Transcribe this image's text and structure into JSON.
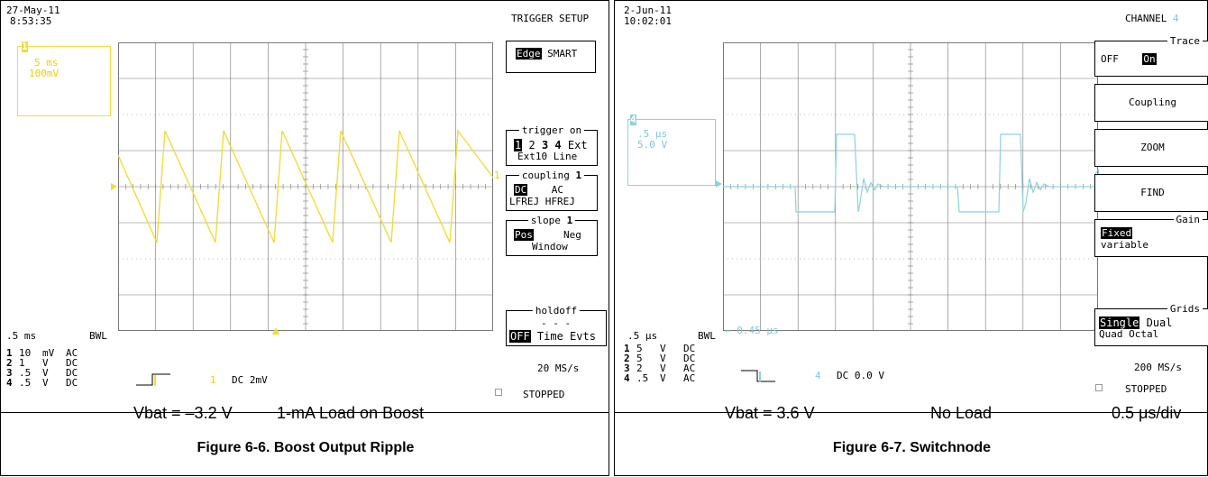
{
  "left": {
    "date": "27-May-11",
    "time": "8:53:35",
    "header": "TRIGGER SETUP",
    "zoom_box": {
      "channel": "1",
      "time": "5 ms",
      "volts": "100mV"
    },
    "menu": {
      "edge": "Edge",
      "smart": "SMART",
      "trigger_on": {
        "title": "trigger on",
        "options": [
          "1",
          "2",
          "3",
          "4",
          "Ext"
        ],
        "line2": "Ext10 Line"
      },
      "coupling": {
        "title": "coupling",
        "channel": "1",
        "dc": "DC",
        "ac": "AC",
        "line2": "LFREJ HFREJ"
      },
      "slope": {
        "title": "slope",
        "channel": "1",
        "pos": "Pos",
        "neg": "Neg",
        "window": "Window"
      },
      "holdoff": {
        "title": "holdoff",
        "dashes": "- - -",
        "off": "OFF",
        "time": "Time Evts"
      }
    },
    "timebase": ".5 ms",
    "bwl": "BWL",
    "channels": [
      {
        "n": "1",
        "v": "10",
        "u": "mV",
        "c": "AC"
      },
      {
        "n": "2",
        "v": "1",
        "u": "V",
        "c": "DC"
      },
      {
        "n": "3",
        "v": ".5",
        "u": "V",
        "c": "DC"
      },
      {
        "n": "4",
        "v": ".5",
        "u": "V",
        "c": "DC"
      }
    ],
    "trig_channel": "1",
    "trig_level": "DC 2mV",
    "sample_rate": "20 MS/s",
    "status": "STOPPED",
    "note_vbat": "Vbat = –3.2 V",
    "note_load": "1-mA Load on Boost",
    "caption": "Figure 6-6. Boost Output Ripple",
    "colors": {
      "trace": "#f0dc3c",
      "grid": "#777777"
    }
  },
  "right": {
    "date": "2-Jun-11",
    "time": "10:02:01",
    "header": "CHANNEL",
    "header_channel": "4",
    "zoom_box": {
      "channel": "4",
      "time": ".5 μs",
      "volts": "5.0 V"
    },
    "menu": {
      "trace": {
        "title": "Trace",
        "off": "OFF",
        "on": "On"
      },
      "coupling": "Coupling",
      "zoom": "ZOOM",
      "find": "FIND",
      "gain": {
        "title": "Gain",
        "fixed": "Fixed",
        "variable": "variable"
      },
      "grids": {
        "title": "Grids",
        "single": "Single",
        "dual": "Dual",
        "line2": "Quad Octal"
      }
    },
    "timebase": ".5 μs",
    "bwl": "BWL",
    "arrow_label": "← 0.45 μs",
    "channels": [
      {
        "n": "1",
        "v": "5",
        "u": "V",
        "c": "DC"
      },
      {
        "n": "2",
        "v": "5",
        "u": "V",
        "c": "DC"
      },
      {
        "n": "3",
        "v": "2",
        "u": "V",
        "c": "AC"
      },
      {
        "n": "4",
        "v": ".5",
        "u": "V",
        "c": "AC"
      }
    ],
    "trig_channel": "4",
    "trig_level": "DC 0.0 V",
    "sample_rate": "200 MS/s",
    "status": "STOPPED",
    "note_vbat": "Vbat = 3.6 V",
    "note_load": "No Load",
    "note_scale": "0.5 μs/div",
    "caption": "Figure 6-7. Switchnode",
    "colors": {
      "trace": "#8cd2dc",
      "grid": "#777777"
    }
  }
}
